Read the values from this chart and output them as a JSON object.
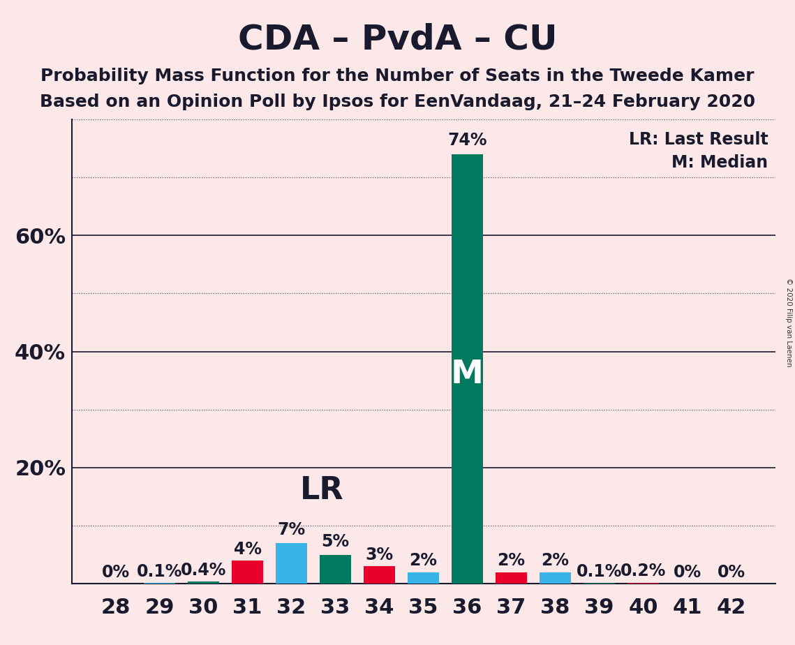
{
  "title": "CDA – PvdA – CU",
  "subtitle1": "Probability Mass Function for the Number of Seats in the Tweede Kamer",
  "subtitle2": "Based on an Opinion Poll by Ipsos for EenVandaag, 21–24 February 2020",
  "copyright": "© 2020 Filip van Laenen",
  "legend1": "LR: Last Result",
  "legend2": "M: Median",
  "seats": [
    28,
    29,
    30,
    31,
    32,
    33,
    34,
    35,
    36,
    37,
    38,
    39,
    40,
    41,
    42
  ],
  "values": [
    0.0,
    0.1,
    0.4,
    4.0,
    7.0,
    5.0,
    3.0,
    2.0,
    74.0,
    2.0,
    2.0,
    0.1,
    0.2,
    0.0,
    0.0
  ],
  "labels": [
    "0%",
    "0.1%",
    "0.4%",
    "4%",
    "7%",
    "5%",
    "3%",
    "2%",
    "74%",
    "2%",
    "2%",
    "0.1%",
    "0.2%",
    "0%",
    "0%"
  ],
  "bar_colors": [
    "#e8002a",
    "#38b5e6",
    "#007a5e",
    "#e8002a",
    "#38b5e6",
    "#007a5e",
    "#e8002a",
    "#38b5e6",
    "#007a5e",
    "#e8002a",
    "#38b5e6",
    "#007a5e",
    "#e8002a",
    "#38b5e6",
    "#007a5e"
  ],
  "lr_seat": 33,
  "median_seat": 36,
  "background_color": "#fce8e8",
  "ylim": [
    0,
    80
  ],
  "solid_yticks": [
    20,
    40,
    60
  ],
  "dotted_yticks": [
    10,
    30,
    50,
    70,
    80
  ],
  "ytick_labels_positions": [
    20,
    40,
    60
  ],
  "ytick_labels_values": [
    "20%",
    "40%",
    "60%"
  ],
  "title_fontsize": 36,
  "subtitle_fontsize": 18,
  "axis_fontsize": 22,
  "label_fontsize": 17,
  "annotation_fontsize": 28
}
